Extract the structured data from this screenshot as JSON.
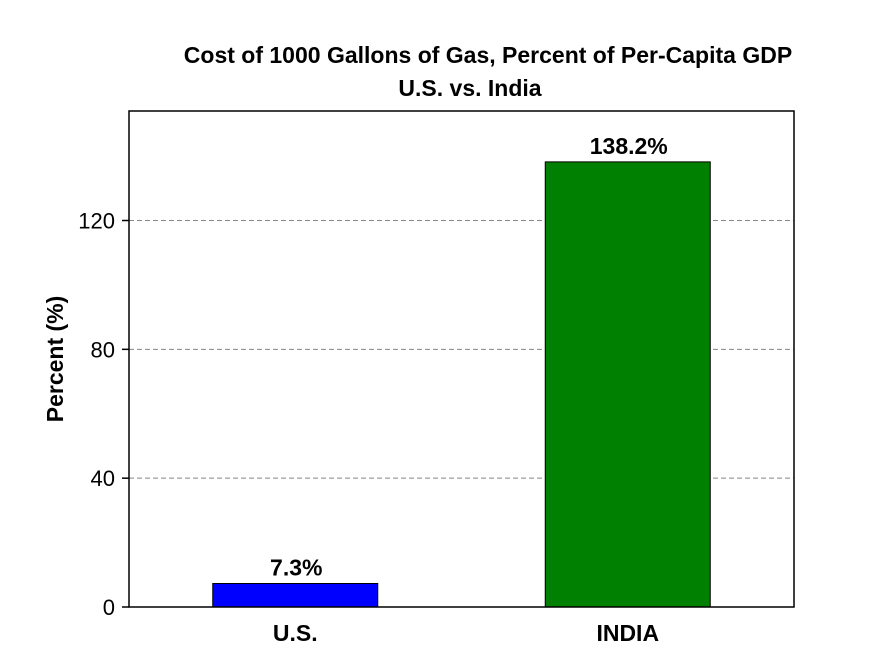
{
  "chart_data": {
    "type": "bar",
    "title": "Cost of 1000 Gallons of Gas, Percent of Per-Capita GDP",
    "subtitle": "U.S. vs. India",
    "xlabel": "",
    "ylabel": "Percent (%)",
    "categories": [
      "U.S.",
      "INDIA"
    ],
    "values": [
      7.3,
      138.2
    ],
    "data_labels": [
      "7.3%",
      "138.2%"
    ],
    "bar_colors": [
      "#0000ff",
      "#008000"
    ],
    "ylim": [
      0,
      154
    ],
    "yticks": [
      0,
      40,
      80,
      120
    ],
    "ytick_labels": [
      "0",
      "40",
      "80",
      "120"
    ],
    "grid": "horizontal-dashed",
    "legend": "none"
  }
}
